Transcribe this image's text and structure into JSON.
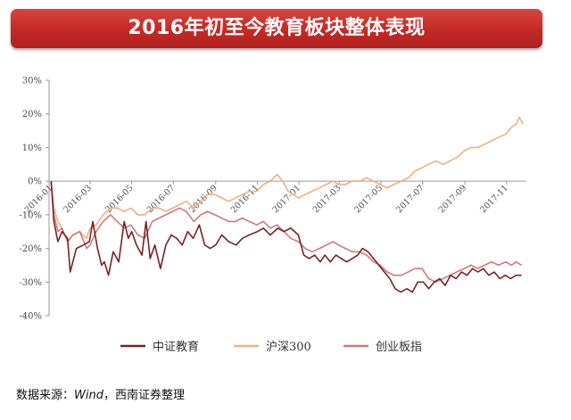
{
  "title": "2016年初至今教育板块整体表现",
  "source": {
    "prefix": "数据来源：",
    "italic": "Wind",
    "suffix": "，西南证券整理"
  },
  "colors": {
    "education": "#7b2226",
    "hs300": "#eeb083",
    "chinext": "#d2787e",
    "axis": "#9a9a9a"
  },
  "chart_data": {
    "type": "line",
    "title": "2016年初至今教育板块整体表现",
    "xlabel": "",
    "ylabel": "",
    "ylim": [
      -40,
      30
    ],
    "xlim": [
      "2016-01-01",
      "2017-11-30"
    ],
    "y_ticks": [
      30,
      20,
      10,
      0,
      -10,
      -20,
      -30,
      -40
    ],
    "y_tick_labels": [
      "30%",
      "20%",
      "10%",
      "0%",
      "-10%",
      "-20%",
      "-30%",
      "-40%"
    ],
    "x_ticks": [
      "2016-01",
      "2016-03",
      "2016-05",
      "2016-07",
      "2016-09",
      "2016-11",
      "2017-01",
      "2017-03",
      "2017-05",
      "2017-07",
      "2017-09",
      "2017-11"
    ],
    "x_tick_positions": [
      "2016-01-04",
      "2016-03-01",
      "2016-05-01",
      "2016-07-01",
      "2016-09-01",
      "2016-11-01",
      "2017-01-01",
      "2017-03-01",
      "2017-05-01",
      "2017-07-01",
      "2017-09-01",
      "2017-11-01"
    ],
    "grid": false,
    "legend_position": "bottom",
    "series": [
      {
        "name": "中证教育",
        "color": "#7b2226",
        "points": [
          [
            "2016-01-04",
            0
          ],
          [
            "2016-01-08",
            -12
          ],
          [
            "2016-01-14",
            -18
          ],
          [
            "2016-01-20",
            -15
          ],
          [
            "2016-01-28",
            -17
          ],
          [
            "2016-02-01",
            -27
          ],
          [
            "2016-02-10",
            -20
          ],
          [
            "2016-02-20",
            -19
          ],
          [
            "2016-02-29",
            -18
          ],
          [
            "2016-03-05",
            -12
          ],
          [
            "2016-03-12",
            -20
          ],
          [
            "2016-03-18",
            -25
          ],
          [
            "2016-03-22",
            -24
          ],
          [
            "2016-03-28",
            -28
          ],
          [
            "2016-04-04",
            -21
          ],
          [
            "2016-04-12",
            -24
          ],
          [
            "2016-04-20",
            -12
          ],
          [
            "2016-04-26",
            -17
          ],
          [
            "2016-05-01",
            -15
          ],
          [
            "2016-05-08",
            -19
          ],
          [
            "2016-05-16",
            -22
          ],
          [
            "2016-05-22",
            -12
          ],
          [
            "2016-05-28",
            -23
          ],
          [
            "2016-06-04",
            -19
          ],
          [
            "2016-06-12",
            -26
          ],
          [
            "2016-06-20",
            -19
          ],
          [
            "2016-06-28",
            -16
          ],
          [
            "2016-07-06",
            -17
          ],
          [
            "2016-07-14",
            -19
          ],
          [
            "2016-07-22",
            -15
          ],
          [
            "2016-07-30",
            -17
          ],
          [
            "2016-08-08",
            -13
          ],
          [
            "2016-08-16",
            -19
          ],
          [
            "2016-08-24",
            -20
          ],
          [
            "2016-09-01",
            -19
          ],
          [
            "2016-09-10",
            -16
          ],
          [
            "2016-09-20",
            -18
          ],
          [
            "2016-10-01",
            -19
          ],
          [
            "2016-10-10",
            -17
          ],
          [
            "2016-10-20",
            -16
          ],
          [
            "2016-11-01",
            -15
          ],
          [
            "2016-11-10",
            -14
          ],
          [
            "2016-11-20",
            -16
          ],
          [
            "2016-12-01",
            -14
          ],
          [
            "2016-12-10",
            -15
          ],
          [
            "2016-12-20",
            -14
          ],
          [
            "2016-12-31",
            -16
          ],
          [
            "2017-01-08",
            -22
          ],
          [
            "2017-01-16",
            -23
          ],
          [
            "2017-01-24",
            -22
          ],
          [
            "2017-02-01",
            -24
          ],
          [
            "2017-02-08",
            -22
          ],
          [
            "2017-02-16",
            -24
          ],
          [
            "2017-02-24",
            -22
          ],
          [
            "2017-03-04",
            -23
          ],
          [
            "2017-03-12",
            -24
          ],
          [
            "2017-03-20",
            -23
          ],
          [
            "2017-03-28",
            -22
          ],
          [
            "2017-04-04",
            -20
          ],
          [
            "2017-04-12",
            -21
          ],
          [
            "2017-04-20",
            -23
          ],
          [
            "2017-04-28",
            -25
          ],
          [
            "2017-05-06",
            -27
          ],
          [
            "2017-05-14",
            -29
          ],
          [
            "2017-05-22",
            -32
          ],
          [
            "2017-05-30",
            -33
          ],
          [
            "2017-06-08",
            -32
          ],
          [
            "2017-06-16",
            -33
          ],
          [
            "2017-06-24",
            -30
          ],
          [
            "2017-07-02",
            -30
          ],
          [
            "2017-07-10",
            -32
          ],
          [
            "2017-07-18",
            -30
          ],
          [
            "2017-07-26",
            -29
          ],
          [
            "2017-08-03",
            -31
          ],
          [
            "2017-08-11",
            -28
          ],
          [
            "2017-08-19",
            -29
          ],
          [
            "2017-08-27",
            -27
          ],
          [
            "2017-09-04",
            -28
          ],
          [
            "2017-09-12",
            -26
          ],
          [
            "2017-09-20",
            -27
          ],
          [
            "2017-09-28",
            -26
          ],
          [
            "2017-10-06",
            -28
          ],
          [
            "2017-10-14",
            -27
          ],
          [
            "2017-10-22",
            -29
          ],
          [
            "2017-10-30",
            -28
          ],
          [
            "2017-11-07",
            -29
          ],
          [
            "2017-11-15",
            -28
          ],
          [
            "2017-11-23",
            -28
          ]
        ]
      },
      {
        "name": "沪深300",
        "color": "#eeb083",
        "points": [
          [
            "2016-01-04",
            0
          ],
          [
            "2016-01-08",
            -8
          ],
          [
            "2016-01-14",
            -12
          ],
          [
            "2016-01-20",
            -14
          ],
          [
            "2016-01-28",
            -18
          ],
          [
            "2016-02-05",
            -16
          ],
          [
            "2016-02-15",
            -15
          ],
          [
            "2016-02-25",
            -17
          ],
          [
            "2016-03-01",
            -14
          ],
          [
            "2016-03-10",
            -13
          ],
          [
            "2016-03-20",
            -10
          ],
          [
            "2016-03-31",
            -8
          ],
          [
            "2016-04-10",
            -8
          ],
          [
            "2016-04-20",
            -9
          ],
          [
            "2016-04-30",
            -8
          ],
          [
            "2016-05-10",
            -10
          ],
          [
            "2016-05-20",
            -10
          ],
          [
            "2016-05-31",
            -8
          ],
          [
            "2016-06-10",
            -8
          ],
          [
            "2016-06-20",
            -9
          ],
          [
            "2016-06-30",
            -8
          ],
          [
            "2016-07-10",
            -7
          ],
          [
            "2016-07-20",
            -6
          ],
          [
            "2016-07-31",
            -8
          ],
          [
            "2016-08-10",
            -6
          ],
          [
            "2016-08-20",
            -4
          ],
          [
            "2016-08-31",
            -4
          ],
          [
            "2016-09-10",
            -5
          ],
          [
            "2016-09-20",
            -6
          ],
          [
            "2016-09-30",
            -5
          ],
          [
            "2016-10-10",
            -4
          ],
          [
            "2016-10-20",
            -3
          ],
          [
            "2016-10-31",
            -3
          ],
          [
            "2016-11-10",
            -1
          ],
          [
            "2016-11-20",
            0
          ],
          [
            "2016-11-30",
            2
          ],
          [
            "2016-12-08",
            0
          ],
          [
            "2016-12-16",
            -3
          ],
          [
            "2016-12-24",
            -4
          ],
          [
            "2016-12-31",
            -5
          ],
          [
            "2017-01-10",
            -4
          ],
          [
            "2017-01-20",
            -3
          ],
          [
            "2017-01-31",
            -2
          ],
          [
            "2017-02-10",
            -1
          ],
          [
            "2017-02-20",
            0
          ],
          [
            "2017-02-28",
            -1
          ],
          [
            "2017-03-10",
            -1
          ],
          [
            "2017-03-20",
            0
          ],
          [
            "2017-03-31",
            0
          ],
          [
            "2017-04-10",
            1
          ],
          [
            "2017-04-20",
            0
          ],
          [
            "2017-04-30",
            -1
          ],
          [
            "2017-05-10",
            -2
          ],
          [
            "2017-05-20",
            -1
          ],
          [
            "2017-05-31",
            0
          ],
          [
            "2017-06-10",
            1
          ],
          [
            "2017-06-20",
            3
          ],
          [
            "2017-06-30",
            4
          ],
          [
            "2017-07-10",
            5
          ],
          [
            "2017-07-20",
            6
          ],
          [
            "2017-07-31",
            5
          ],
          [
            "2017-08-10",
            6
          ],
          [
            "2017-08-20",
            7
          ],
          [
            "2017-08-31",
            9
          ],
          [
            "2017-09-10",
            10
          ],
          [
            "2017-09-20",
            10
          ],
          [
            "2017-09-30",
            11
          ],
          [
            "2017-10-10",
            12
          ],
          [
            "2017-10-20",
            13
          ],
          [
            "2017-10-31",
            14
          ],
          [
            "2017-11-08",
            16
          ],
          [
            "2017-11-15",
            17
          ],
          [
            "2017-11-20",
            19
          ],
          [
            "2017-11-25",
            17
          ]
        ]
      },
      {
        "name": "创业板指",
        "color": "#d2787e",
        "points": [
          [
            "2016-01-04",
            0
          ],
          [
            "2016-01-08",
            -10
          ],
          [
            "2016-01-14",
            -15
          ],
          [
            "2016-01-20",
            -14
          ],
          [
            "2016-01-28",
            -18
          ],
          [
            "2016-02-05",
            -16
          ],
          [
            "2016-02-15",
            -15
          ],
          [
            "2016-02-25",
            -20
          ],
          [
            "2016-03-01",
            -19
          ],
          [
            "2016-03-10",
            -15
          ],
          [
            "2016-03-20",
            -12
          ],
          [
            "2016-03-31",
            -10
          ],
          [
            "2016-04-10",
            -12
          ],
          [
            "2016-04-20",
            -14
          ],
          [
            "2016-04-30",
            -13
          ],
          [
            "2016-05-10",
            -16
          ],
          [
            "2016-05-20",
            -17
          ],
          [
            "2016-05-31",
            -12
          ],
          [
            "2016-06-10",
            -11
          ],
          [
            "2016-06-20",
            -10
          ],
          [
            "2016-06-30",
            -9
          ],
          [
            "2016-07-10",
            -8
          ],
          [
            "2016-07-20",
            -9
          ],
          [
            "2016-07-31",
            -12
          ],
          [
            "2016-08-10",
            -10
          ],
          [
            "2016-08-20",
            -9
          ],
          [
            "2016-08-31",
            -10
          ],
          [
            "2016-09-10",
            -11
          ],
          [
            "2016-09-20",
            -12
          ],
          [
            "2016-09-30",
            -12
          ],
          [
            "2016-10-10",
            -11
          ],
          [
            "2016-10-20",
            -12
          ],
          [
            "2016-10-31",
            -13
          ],
          [
            "2016-11-10",
            -12
          ],
          [
            "2016-11-20",
            -14
          ],
          [
            "2016-11-30",
            -13
          ],
          [
            "2016-12-10",
            -15
          ],
          [
            "2016-12-20",
            -17
          ],
          [
            "2016-12-31",
            -18
          ],
          [
            "2017-01-10",
            -20
          ],
          [
            "2017-01-20",
            -21
          ],
          [
            "2017-01-31",
            -20
          ],
          [
            "2017-02-10",
            -19
          ],
          [
            "2017-02-20",
            -18
          ],
          [
            "2017-02-28",
            -19
          ],
          [
            "2017-03-10",
            -20
          ],
          [
            "2017-03-20",
            -21
          ],
          [
            "2017-03-31",
            -21
          ],
          [
            "2017-04-10",
            -22
          ],
          [
            "2017-04-20",
            -24
          ],
          [
            "2017-04-30",
            -25
          ],
          [
            "2017-05-10",
            -27
          ],
          [
            "2017-05-20",
            -28
          ],
          [
            "2017-05-31",
            -28
          ],
          [
            "2017-06-10",
            -27
          ],
          [
            "2017-06-20",
            -26
          ],
          [
            "2017-06-30",
            -26
          ],
          [
            "2017-07-10",
            -29
          ],
          [
            "2017-07-20",
            -30
          ],
          [
            "2017-07-31",
            -29
          ],
          [
            "2017-08-10",
            -28
          ],
          [
            "2017-08-20",
            -27
          ],
          [
            "2017-08-31",
            -26
          ],
          [
            "2017-09-10",
            -25
          ],
          [
            "2017-09-20",
            -26
          ],
          [
            "2017-09-30",
            -25
          ],
          [
            "2017-10-10",
            -24
          ],
          [
            "2017-10-20",
            -25
          ],
          [
            "2017-10-31",
            -24
          ],
          [
            "2017-11-08",
            -25
          ],
          [
            "2017-11-15",
            -24
          ],
          [
            "2017-11-23",
            -25
          ]
        ]
      }
    ]
  }
}
